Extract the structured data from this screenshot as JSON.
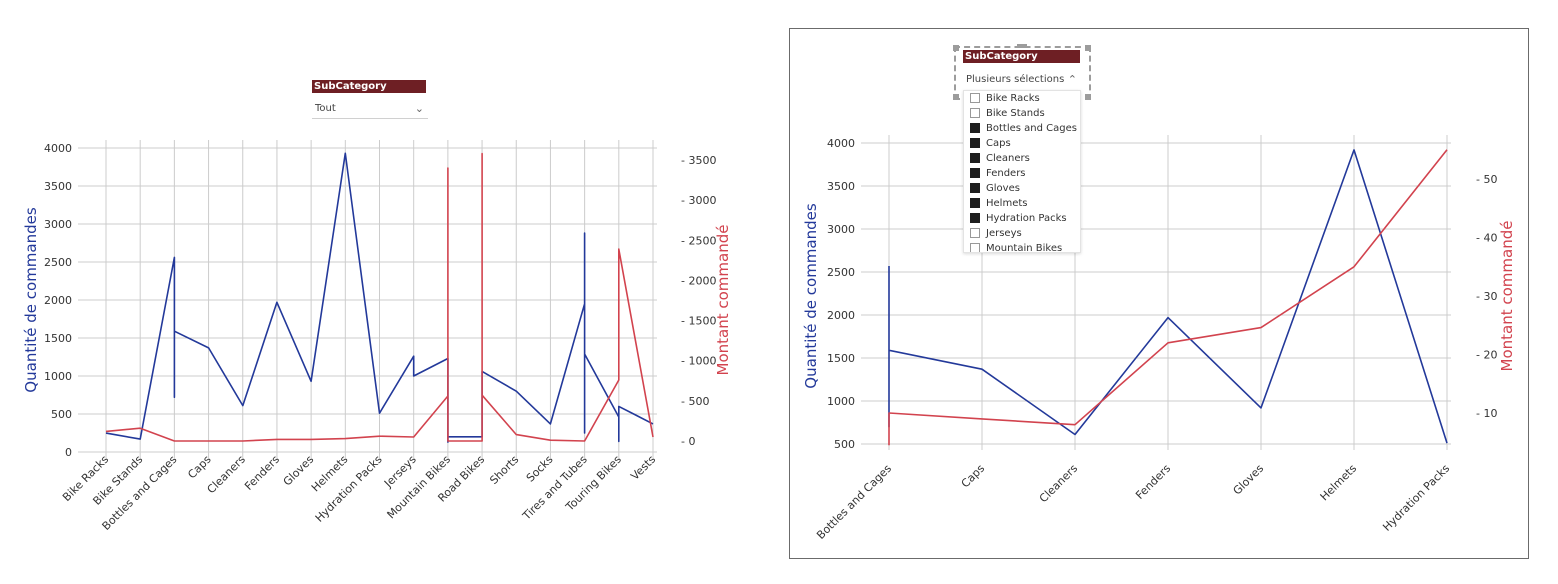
{
  "left_slicer": {
    "header": "SubCategory",
    "selected": "Tout"
  },
  "right_slicer": {
    "header": "SubCategory",
    "selected": "Plusieurs sélections",
    "items": [
      {
        "label": "Bike Racks",
        "checked": false
      },
      {
        "label": "Bike Stands",
        "checked": false
      },
      {
        "label": "Bottles and Cages",
        "checked": true
      },
      {
        "label": "Caps",
        "checked": true
      },
      {
        "label": "Cleaners",
        "checked": true
      },
      {
        "label": "Fenders",
        "checked": true
      },
      {
        "label": "Gloves",
        "checked": true
      },
      {
        "label": "Helmets",
        "checked": true
      },
      {
        "label": "Hydration Packs",
        "checked": true
      },
      {
        "label": "Jerseys",
        "checked": false
      },
      {
        "label": "Mountain Bikes",
        "checked": false
      }
    ]
  },
  "colors": {
    "quantity": "#23399a",
    "amount": "#d2434e",
    "slicer_header": "#6e1f24",
    "grid": "#cccccc"
  },
  "chart_data": [
    {
      "type": "line",
      "ylabel": "Quantité de commandes",
      "y2label": "Montant commandé",
      "categories": [
        "Bike Racks",
        "Bike Stands",
        "Bottles and Cages",
        "Caps",
        "Cleaners",
        "Fenders",
        "Gloves",
        "Helmets",
        "Hydration Packs",
        "Jerseys",
        "Mountain Bikes",
        "Road Bikes",
        "Shorts",
        "Socks",
        "Tires and Tubes",
        "Touring Bikes",
        "Vests"
      ],
      "ylim": [
        0,
        4000
      ],
      "y2lim": [
        0,
        3500
      ],
      "yticks": [
        "0",
        "500",
        "1000",
        "1500",
        "2000",
        "2500",
        "3000",
        "3500",
        "4000"
      ],
      "y2ticks": [
        "0",
        "500",
        "1000",
        "1500",
        "2000",
        "2500",
        "3000",
        "3500"
      ],
      "series": [
        {
          "name": "Quantité de commandes",
          "axis": "left",
          "points": [
            [
              0,
              249
            ],
            [
              1,
              170
            ],
            [
              2,
              2560
            ],
            [
              2,
              720
            ],
            [
              2,
              1590
            ],
            [
              3,
              1370
            ],
            [
              4,
              610
            ],
            [
              5,
              1970
            ],
            [
              6,
              930
            ],
            [
              7,
              3930
            ],
            [
              8,
              510
            ],
            [
              9,
              1260
            ],
            [
              9,
              1000
            ],
            [
              10,
              1230
            ],
            [
              10,
              130
            ],
            [
              10,
              200
            ],
            [
              11,
              200
            ],
            [
              11,
              1060
            ],
            [
              12,
              800
            ],
            [
              13,
              370
            ],
            [
              14,
              1950
            ],
            [
              14,
              250
            ],
            [
              14,
              2880
            ],
            [
              14,
              1290
            ],
            [
              15,
              460
            ],
            [
              15,
              140
            ],
            [
              15,
              600
            ],
            [
              16,
              370
            ]
          ]
        },
        {
          "name": "Montant commandé",
          "axis": "right",
          "points": [
            [
              0,
              120
            ],
            [
              1,
              160
            ],
            [
              2,
              0
            ],
            [
              3,
              0
            ],
            [
              4,
              0
            ],
            [
              5,
              20
            ],
            [
              6,
              20
            ],
            [
              7,
              30
            ],
            [
              8,
              60
            ],
            [
              9,
              50
            ],
            [
              10,
              560
            ],
            [
              10,
              3400
            ],
            [
              10,
              0
            ],
            [
              11,
              0
            ],
            [
              11,
              3580
            ],
            [
              11,
              570
            ],
            [
              12,
              80
            ],
            [
              13,
              10
            ],
            [
              14,
              0
            ],
            [
              15,
              760
            ],
            [
              15,
              2390
            ],
            [
              16,
              50
            ]
          ]
        }
      ]
    },
    {
      "type": "line",
      "ylabel": "Quantité de commandes",
      "y2label": "Montant commandé",
      "categories": [
        "Bottles and Cages",
        "Caps",
        "Cleaners",
        "Fenders",
        "Gloves",
        "Helmets",
        "Hydration Packs"
      ],
      "ylim": [
        500,
        4000
      ],
      "y2lim": [
        4.5,
        55
      ],
      "yticks": [
        "500",
        "1000",
        "1500",
        "2000",
        "2500",
        "3000",
        "3500",
        "4000"
      ],
      "y2ticks": [
        "10",
        "20",
        "30",
        "40",
        "50"
      ],
      "y2tick_values": [
        10,
        20,
        30,
        40,
        50
      ],
      "series": [
        {
          "name": "Quantité de commandes",
          "axis": "left",
          "points": [
            [
              0,
              2570
            ],
            [
              0,
              700
            ],
            [
              0,
              1590
            ],
            [
              1,
              1370
            ],
            [
              2,
              610
            ],
            [
              3,
              1970
            ],
            [
              4,
              920
            ],
            [
              5,
              3920
            ],
            [
              6,
              510
            ]
          ]
        },
        {
          "name": "Montant commandé",
          "axis": "right",
          "points": [
            [
              0,
              4.5
            ],
            [
              0,
              10
            ],
            [
              1,
              9
            ],
            [
              2,
              8
            ],
            [
              3,
              22
            ],
            [
              4,
              24.6
            ],
            [
              5,
              35
            ],
            [
              6,
              55
            ]
          ]
        }
      ]
    }
  ]
}
